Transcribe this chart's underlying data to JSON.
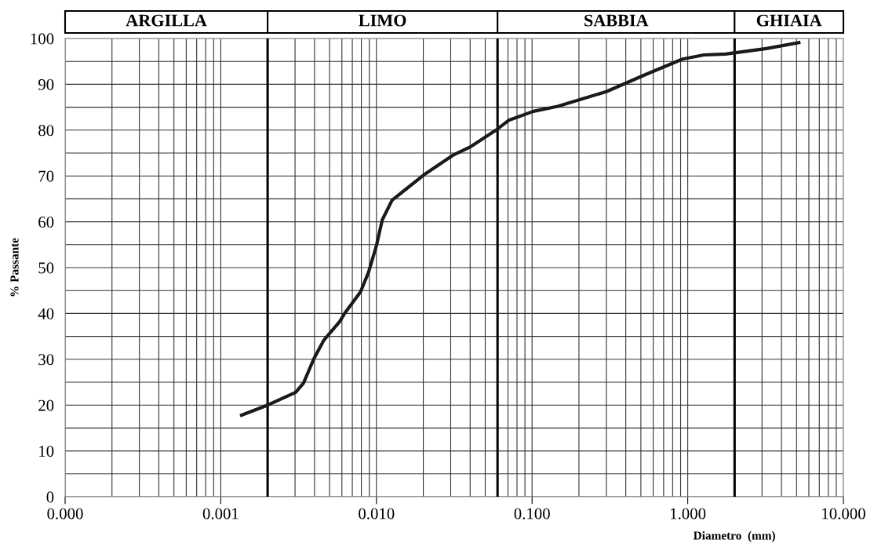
{
  "chart_data": {
    "type": "line",
    "xlabel": "Diametro  (mm)",
    "ylabel": "% Passante",
    "log": "x",
    "x": [
      0.00136,
      0.002,
      0.00303,
      0.0034,
      0.00396,
      0.0046,
      0.0058,
      0.0063,
      0.0079,
      0.0089,
      0.01,
      0.0109,
      0.0126,
      0.0201,
      0.0309,
      0.0404,
      0.0592,
      0.0713,
      0.102,
      0.146,
      0.3,
      0.525,
      0.927,
      1.27,
      1.75,
      3.2,
      5.17
    ],
    "series": [
      {
        "color": "#1a1a1a",
        "values": [
          17.8,
          20,
          22.8,
          24.8,
          30.1,
          34.2,
          38.2,
          40.2,
          44.7,
          49,
          54.8,
          60.4,
          64.7,
          70.2,
          74.5,
          76.4,
          80.1,
          82.2,
          84.1,
          85.2,
          88.4,
          92,
          95.5,
          96.4,
          96.6,
          97.8,
          99.1
        ]
      }
    ],
    "xlim": [
      0.0001,
      10
    ],
    "ylim": [
      0,
      100
    ],
    "xticks": [
      {
        "value": 0.0001,
        "label": "0.000"
      },
      {
        "value": 0.0002,
        "label": null
      },
      {
        "value": 0.0003,
        "label": null
      },
      {
        "value": 0.0004,
        "label": null
      },
      {
        "value": 0.0005,
        "label": null
      },
      {
        "value": 0.0006,
        "label": null
      },
      {
        "value": 0.0007,
        "label": null
      },
      {
        "value": 0.0008,
        "label": null
      },
      {
        "value": 0.0009,
        "label": null
      },
      {
        "value": 0.001,
        "label": "0.001"
      },
      {
        "value": 0.003,
        "label": null
      },
      {
        "value": 0.004,
        "label": null
      },
      {
        "value": 0.005,
        "label": null
      },
      {
        "value": 0.006,
        "label": null
      },
      {
        "value": 0.007,
        "label": null
      },
      {
        "value": 0.008,
        "label": null
      },
      {
        "value": 0.009,
        "label": null
      },
      {
        "value": 0.01,
        "label": "0.010"
      },
      {
        "value": 0.02,
        "label": null
      },
      {
        "value": 0.03,
        "label": null
      },
      {
        "value": 0.04,
        "label": null
      },
      {
        "value": 0.05,
        "label": null
      },
      {
        "value": 0.07,
        "label": null
      },
      {
        "value": 0.08,
        "label": null
      },
      {
        "value": 0.09,
        "label": null
      },
      {
        "value": 0.1,
        "label": "0.100"
      },
      {
        "value": 0.2,
        "label": null
      },
      {
        "value": 0.3,
        "label": null
      },
      {
        "value": 0.4,
        "label": null
      },
      {
        "value": 0.5,
        "label": null
      },
      {
        "value": 0.6,
        "label": null
      },
      {
        "value": 0.7,
        "label": null
      },
      {
        "value": 0.8,
        "label": null
      },
      {
        "value": 0.9,
        "label": null
      },
      {
        "value": 1,
        "label": "1.000"
      },
      {
        "value": 3,
        "label": null
      },
      {
        "value": 4,
        "label": null
      },
      {
        "value": 5,
        "label": null
      },
      {
        "value": 6,
        "label": null
      },
      {
        "value": 7,
        "label": null
      },
      {
        "value": 8,
        "label": null
      },
      {
        "value": 9,
        "label": null
      },
      {
        "value": 10,
        "label": "10.000"
      }
    ],
    "yticks": [
      0,
      {
        "value": 5,
        "label": null
      },
      10,
      {
        "value": 15,
        "label": null
      },
      20,
      {
        "value": 25,
        "label": null
      },
      30,
      {
        "value": 35,
        "label": null
      },
      40,
      {
        "value": 45,
        "label": null
      },
      50,
      {
        "value": 55,
        "label": null
      },
      60,
      {
        "value": 65,
        "label": null
      },
      70,
      {
        "value": 75,
        "label": null
      },
      80,
      {
        "value": 85,
        "label": null
      },
      90,
      {
        "value": 95,
        "label": null
      },
      100
    ],
    "grid": true,
    "line_style": "solid",
    "marker": "none",
    "legend": false,
    "ref_lines": [
      {
        "axis": "x",
        "value": 0.002,
        "color": "#000000"
      },
      {
        "axis": "x",
        "value": 0.06,
        "color": "#000000"
      },
      {
        "axis": "x",
        "value": 2,
        "color": "#000000"
      }
    ],
    "annotations": [
      "ARGILLA",
      "LIMO",
      "SABBIA",
      "GHIAIA"
    ]
  }
}
